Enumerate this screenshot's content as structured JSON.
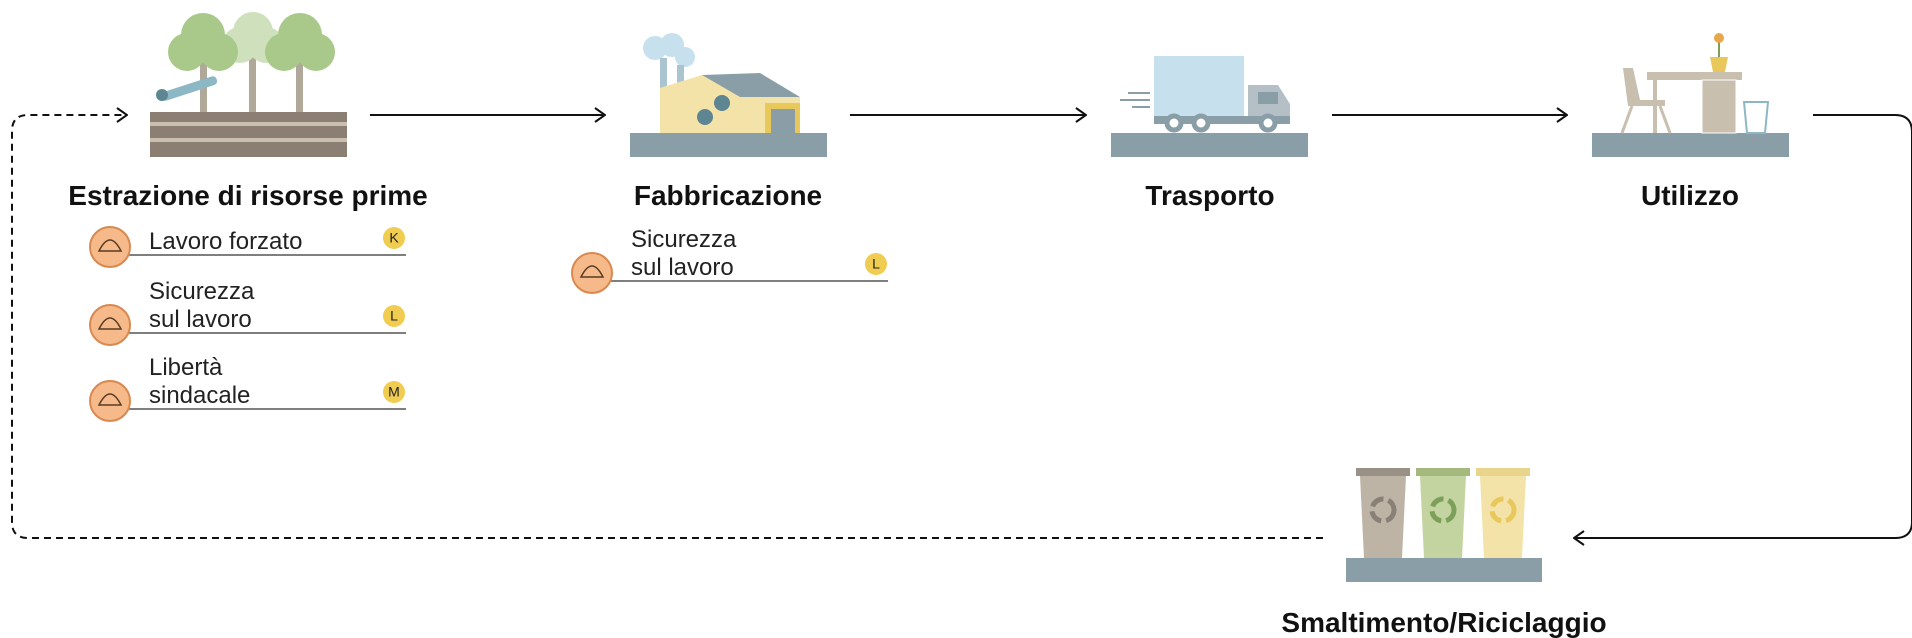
{
  "stages": [
    {
      "title": "Estrazione di risorse prime",
      "risks": [
        {
          "lines": [
            "Lavoro forzato"
          ],
          "code": "K"
        },
        {
          "lines": [
            "Sicurezza",
            "sul lavoro"
          ],
          "code": "L"
        },
        {
          "lines": [
            "Libertà",
            "sindacale"
          ],
          "code": "M"
        }
      ]
    },
    {
      "title": "Fabbricazione",
      "risks": [
        {
          "lines": [
            "Sicurezza",
            "sul lavoro"
          ],
          "code": "L"
        }
      ]
    },
    {
      "title": "Trasporto",
      "risks": []
    },
    {
      "title": "Utilizzo",
      "risks": []
    },
    {
      "title": "Smaltimento/Riciclaggio",
      "risks": []
    }
  ]
}
